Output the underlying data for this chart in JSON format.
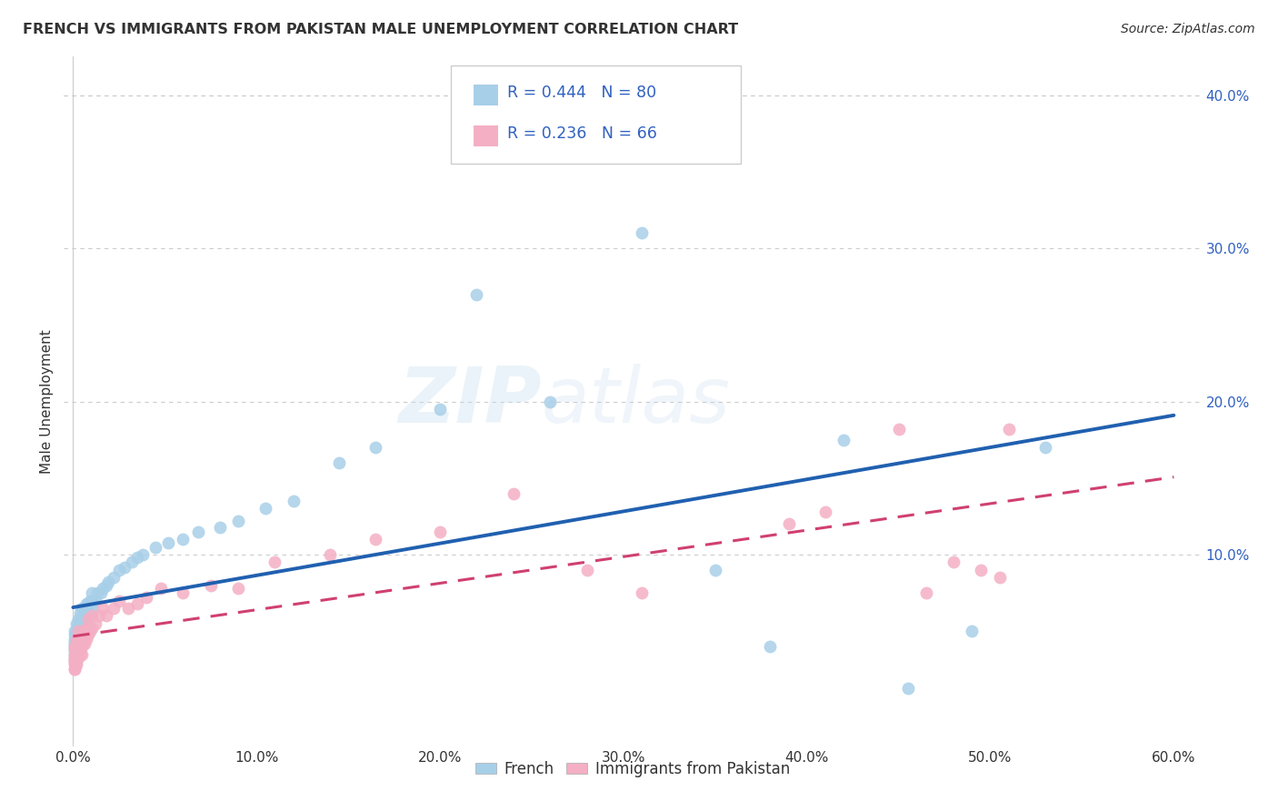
{
  "title": "FRENCH VS IMMIGRANTS FROM PAKISTAN MALE UNEMPLOYMENT CORRELATION CHART",
  "source": "Source: ZipAtlas.com",
  "ylabel": "Male Unemployment",
  "xlim": [
    -0.005,
    0.615
  ],
  "ylim": [
    -0.025,
    0.425
  ],
  "xtick_labels": [
    "0.0%",
    "10.0%",
    "20.0%",
    "30.0%",
    "40.0%",
    "50.0%",
    "60.0%"
  ],
  "xtick_vals": [
    0.0,
    0.1,
    0.2,
    0.3,
    0.4,
    0.5,
    0.6
  ],
  "ytick_labels": [
    "10.0%",
    "20.0%",
    "30.0%",
    "40.0%"
  ],
  "ytick_vals": [
    0.1,
    0.2,
    0.3,
    0.4
  ],
  "blue_color": "#a8cfe8",
  "pink_color": "#f4afc4",
  "blue_line_color": "#2060b0",
  "pink_line_color": "#d04070",
  "bg_color": "#ffffff",
  "grid_color": "#cccccc",
  "text_dark": "#333333",
  "text_blue": "#3060c0",
  "watermark_text": "ZIPatlas",
  "blue_x": [
    0.001,
    0.001,
    0.001,
    0.001,
    0.001,
    0.001,
    0.001,
    0.001,
    0.001,
    0.001,
    0.002,
    0.002,
    0.002,
    0.002,
    0.002,
    0.002,
    0.002,
    0.002,
    0.002,
    0.003,
    0.003,
    0.003,
    0.003,
    0.003,
    0.003,
    0.003,
    0.004,
    0.004,
    0.004,
    0.004,
    0.004,
    0.005,
    0.005,
    0.005,
    0.005,
    0.005,
    0.006,
    0.006,
    0.006,
    0.007,
    0.007,
    0.007,
    0.008,
    0.008,
    0.009,
    0.009,
    0.01,
    0.01,
    0.01,
    0.012,
    0.013,
    0.015,
    0.016,
    0.018,
    0.019,
    0.022,
    0.025,
    0.028,
    0.032,
    0.035,
    0.038,
    0.045,
    0.052,
    0.06,
    0.068,
    0.08,
    0.09,
    0.105,
    0.12,
    0.145,
    0.165,
    0.2,
    0.22,
    0.26,
    0.31,
    0.35,
    0.38,
    0.42,
    0.455,
    0.49,
    0.53
  ],
  "blue_y": [
    0.032,
    0.038,
    0.045,
    0.04,
    0.035,
    0.042,
    0.048,
    0.037,
    0.043,
    0.05,
    0.04,
    0.045,
    0.05,
    0.038,
    0.043,
    0.048,
    0.055,
    0.042,
    0.047,
    0.045,
    0.05,
    0.055,
    0.048,
    0.043,
    0.052,
    0.058,
    0.048,
    0.053,
    0.058,
    0.045,
    0.062,
    0.05,
    0.055,
    0.06,
    0.048,
    0.065,
    0.055,
    0.06,
    0.065,
    0.058,
    0.063,
    0.068,
    0.06,
    0.068,
    0.062,
    0.07,
    0.065,
    0.07,
    0.075,
    0.07,
    0.075,
    0.075,
    0.078,
    0.08,
    0.082,
    0.085,
    0.09,
    0.092,
    0.095,
    0.098,
    0.1,
    0.105,
    0.108,
    0.11,
    0.115,
    0.118,
    0.122,
    0.13,
    0.135,
    0.16,
    0.17,
    0.195,
    0.27,
    0.2,
    0.31,
    0.09,
    0.04,
    0.175,
    0.013,
    0.05,
    0.17
  ],
  "pink_x": [
    0.001,
    0.001,
    0.001,
    0.001,
    0.001,
    0.001,
    0.001,
    0.001,
    0.001,
    0.001,
    0.002,
    0.002,
    0.002,
    0.002,
    0.002,
    0.002,
    0.002,
    0.003,
    0.003,
    0.003,
    0.003,
    0.003,
    0.004,
    0.004,
    0.004,
    0.004,
    0.005,
    0.005,
    0.005,
    0.006,
    0.006,
    0.007,
    0.007,
    0.008,
    0.008,
    0.009,
    0.01,
    0.01,
    0.012,
    0.014,
    0.016,
    0.018,
    0.022,
    0.025,
    0.03,
    0.035,
    0.04,
    0.048,
    0.06,
    0.075,
    0.09,
    0.11,
    0.14,
    0.165,
    0.2,
    0.24,
    0.28,
    0.31,
    0.39,
    0.41,
    0.45,
    0.465,
    0.48,
    0.495,
    0.505,
    0.51
  ],
  "pink_y": [
    0.025,
    0.03,
    0.035,
    0.028,
    0.033,
    0.038,
    0.03,
    0.04,
    0.025,
    0.032,
    0.032,
    0.038,
    0.042,
    0.03,
    0.035,
    0.045,
    0.028,
    0.035,
    0.04,
    0.045,
    0.033,
    0.05,
    0.038,
    0.045,
    0.042,
    0.035,
    0.04,
    0.048,
    0.035,
    0.042,
    0.05,
    0.045,
    0.052,
    0.048,
    0.058,
    0.05,
    0.052,
    0.06,
    0.055,
    0.06,
    0.065,
    0.06,
    0.065,
    0.07,
    0.065,
    0.068,
    0.072,
    0.078,
    0.075,
    0.08,
    0.078,
    0.095,
    0.1,
    0.11,
    0.115,
    0.14,
    0.09,
    0.075,
    0.12,
    0.128,
    0.182,
    0.075,
    0.095,
    0.09,
    0.085,
    0.182
  ]
}
